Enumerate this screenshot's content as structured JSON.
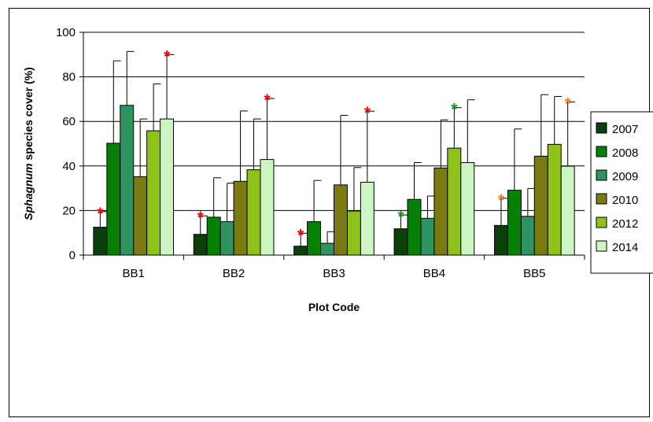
{
  "chart_data": {
    "type": "bar",
    "title": "",
    "xlabel": "Plot Code",
    "ylabel": {
      "italic": "Sphagnum",
      "rest": " species cover (%)"
    },
    "ylim": [
      0,
      100
    ],
    "yticks": [
      "0",
      "20",
      "40",
      "60",
      "80",
      "100"
    ],
    "grid": true,
    "legend_position": "right",
    "categories": [
      "BB1",
      "BB2",
      "BB3",
      "BB4",
      "BB5"
    ],
    "series": [
      {
        "name": "2007",
        "color": "#0b3f0b",
        "values": [
          12.5,
          9.3,
          4.0,
          11.8,
          13.3
        ],
        "errors": [
          7.0,
          8.3,
          5.8,
          6.2,
          12.2
        ]
      },
      {
        "name": "2008",
        "color": "#068106",
        "values": [
          50.2,
          17.0,
          15.0,
          25.0,
          29.1
        ],
        "errors": [
          37.0,
          17.7,
          18.5,
          16.5,
          27.5
        ]
      },
      {
        "name": "2009",
        "color": "#2e9360",
        "values": [
          67.2,
          15.0,
          5.3,
          16.5,
          17.4
        ],
        "errors": [
          24.2,
          17.3,
          5.2,
          10.0,
          12.5
        ]
      },
      {
        "name": "2010",
        "color": "#7a7a12",
        "values": [
          35.2,
          33.1,
          31.5,
          39.1,
          44.4
        ],
        "errors": [
          25.9,
          31.6,
          31.2,
          21.6,
          27.6
        ]
      },
      {
        "name": "2012",
        "color": "#8ec21b",
        "values": [
          55.8,
          38.3,
          19.8,
          48.0,
          49.7
        ],
        "errors": [
          21.0,
          22.8,
          19.5,
          18.2,
          21.5
        ]
      },
      {
        "name": "2014",
        "color": "#cdf5c1",
        "values": [
          61.1,
          42.9,
          32.7,
          41.5,
          39.9
        ],
        "errors": [
          28.9,
          27.4,
          31.9,
          28.2,
          28.8
        ]
      }
    ],
    "annotations": [
      {
        "category": "BB1",
        "series": "2007",
        "text": "*",
        "color": "#ff0000"
      },
      {
        "category": "BB1",
        "series": "2014",
        "text": "*",
        "color": "#ff0000"
      },
      {
        "category": "BB2",
        "series": "2007",
        "text": "*",
        "color": "#ff0000"
      },
      {
        "category": "BB2",
        "series": "2014",
        "text": "*",
        "color": "#ff0000"
      },
      {
        "category": "BB3",
        "series": "2007",
        "text": "*",
        "color": "#ff0000"
      },
      {
        "category": "BB3",
        "series": "2014",
        "text": "*",
        "color": "#ff0000"
      },
      {
        "category": "BB4",
        "series": "2007",
        "text": "*",
        "color": "#1a9a1a"
      },
      {
        "category": "BB4",
        "series": "2012",
        "text": "*",
        "color": "#1a9a1a"
      },
      {
        "category": "BB5",
        "series": "2007",
        "text": "*",
        "color": "#f07f21"
      },
      {
        "category": "BB5",
        "series": "2014",
        "text": "*",
        "color": "#f07f21"
      }
    ]
  }
}
